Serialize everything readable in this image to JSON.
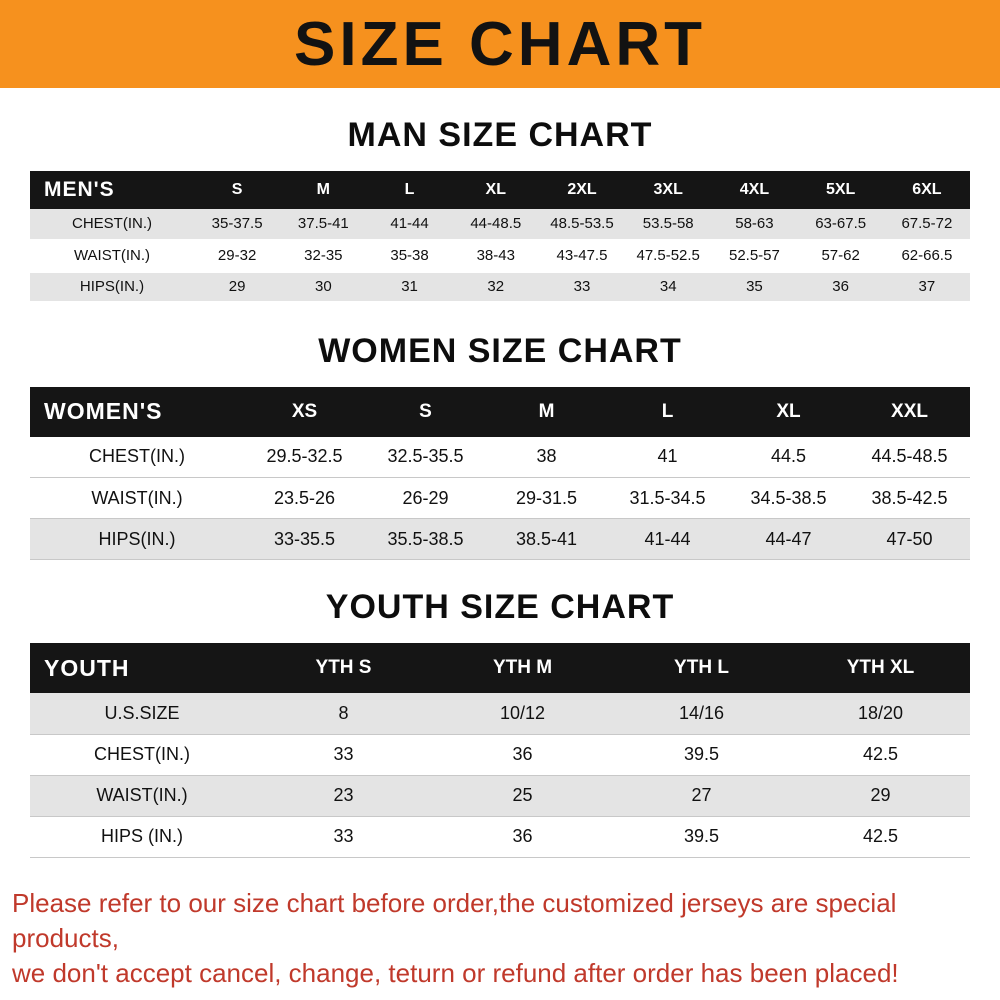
{
  "banner": {
    "title": "SIZE CHART",
    "bg_color": "#f6911e",
    "text_color": "#121212"
  },
  "chart_data": [
    {
      "type": "table",
      "title": "MAN SIZE CHART",
      "corner_label": "MEN'S",
      "columns": [
        "S",
        "M",
        "L",
        "XL",
        "2XL",
        "3XL",
        "4XL",
        "5XL",
        "6XL"
      ],
      "rows": [
        {
          "label": "CHEST(IN.)",
          "values": [
            "35-37.5",
            "37.5-41",
            "41-44",
            "44-48.5",
            "48.5-53.5",
            "53.5-58",
            "58-63",
            "63-67.5",
            "67.5-72"
          ]
        },
        {
          "label": "WAIST(IN.)",
          "values": [
            "29-32",
            "32-35",
            "35-38",
            "38-43",
            "43-47.5",
            "47.5-52.5",
            "52.5-57",
            "57-62",
            "62-66.5"
          ]
        },
        {
          "label": "HIPS(IN.)",
          "values": [
            "29",
            "30",
            "31",
            "32",
            "33",
            "34",
            "35",
            "36",
            "37"
          ]
        }
      ]
    },
    {
      "type": "table",
      "title": "WOMEN SIZE CHART",
      "corner_label": "WOMEN'S",
      "columns": [
        "XS",
        "S",
        "M",
        "L",
        "XL",
        "XXL"
      ],
      "rows": [
        {
          "label": "CHEST(IN.)",
          "values": [
            "29.5-32.5",
            "32.5-35.5",
            "38",
            "41",
            "44.5",
            "44.5-48.5"
          ]
        },
        {
          "label": "WAIST(IN.)",
          "values": [
            "23.5-26",
            "26-29",
            "29-31.5",
            "31.5-34.5",
            "34.5-38.5",
            "38.5-42.5"
          ]
        },
        {
          "label": "HIPS(IN.)",
          "values": [
            "33-35.5",
            "35.5-38.5",
            "38.5-41",
            "41-44",
            "44-47",
            "47-50"
          ]
        }
      ]
    },
    {
      "type": "table",
      "title": "YOUTH SIZE CHART",
      "corner_label": "YOUTH",
      "columns": [
        "YTH S",
        "YTH M",
        "YTH L",
        "YTH XL"
      ],
      "rows": [
        {
          "label": "U.S.SIZE",
          "values": [
            "8",
            "10/12",
            "14/16",
            "18/20"
          ]
        },
        {
          "label": "CHEST(IN.)",
          "values": [
            "33",
            "36",
            "39.5",
            "42.5"
          ]
        },
        {
          "label": "WAIST(IN.)",
          "values": [
            "23",
            "25",
            "27",
            "29"
          ]
        },
        {
          "label": "HIPS (IN.)",
          "values": [
            "33",
            "36",
            "39.5",
            "42.5"
          ]
        }
      ]
    }
  ],
  "footer": {
    "line1": "Please refer to our size chart before order,the customized jerseys are special products,",
    "line2": "we don't accept cancel, change, teturn or refund after order has been placed!",
    "text_color": "#c0392b"
  }
}
